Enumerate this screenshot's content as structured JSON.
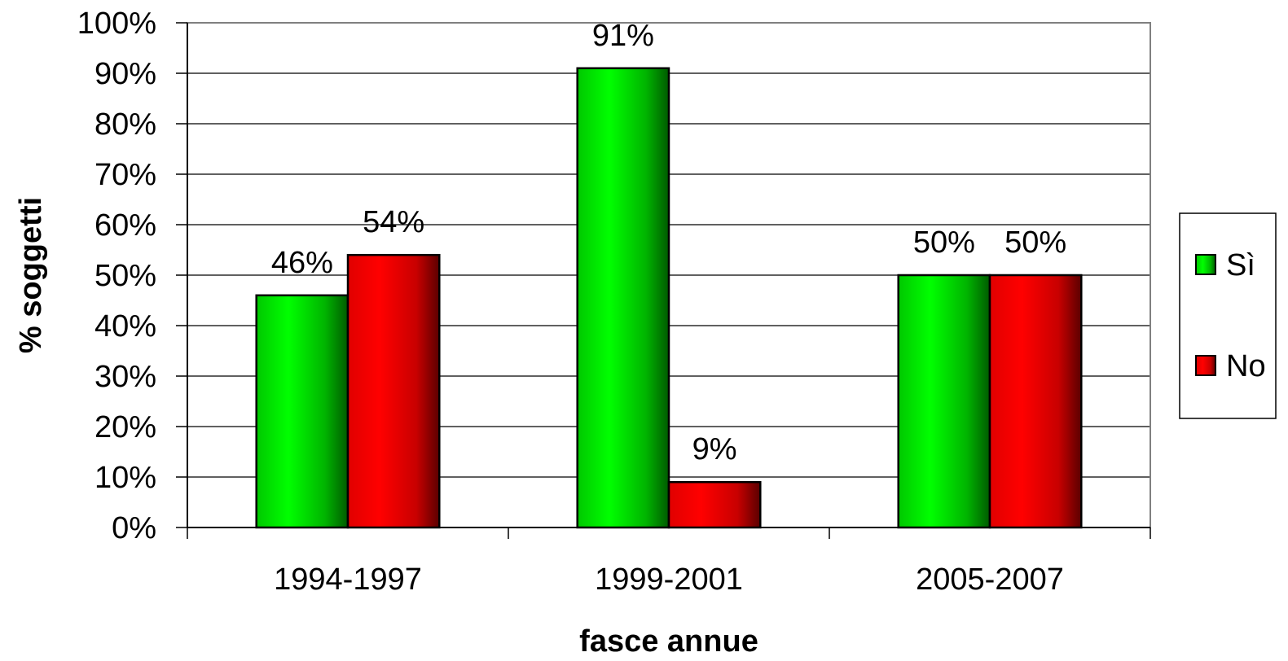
{
  "chart_data": {
    "type": "bar",
    "categories": [
      "1994-1997",
      "1999-2001",
      "2005-2007"
    ],
    "series": [
      {
        "name": "Sì",
        "values": [
          46,
          91,
          50
        ],
        "labels": [
          "46%",
          "91%",
          "50%"
        ],
        "color": "#00ee00"
      },
      {
        "name": "No",
        "values": [
          54,
          9,
          50
        ],
        "labels": [
          "54%",
          "9%",
          "50%"
        ],
        "color": "#ff0000"
      }
    ],
    "xlabel": "fasce annue",
    "ylabel": "% soggetti",
    "ylim": [
      0,
      100
    ],
    "yticks": [
      "0%",
      "10%",
      "20%",
      "30%",
      "40%",
      "50%",
      "60%",
      "70%",
      "80%",
      "90%",
      "100%"
    ],
    "grid": true,
    "legend_position": "right"
  }
}
